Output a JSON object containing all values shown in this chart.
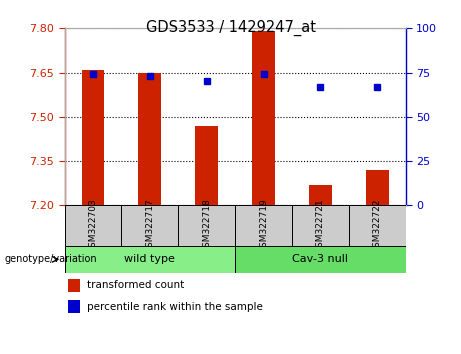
{
  "title": "GDS3533 / 1429247_at",
  "samples": [
    "GSM322703",
    "GSM322717",
    "GSM322718",
    "GSM322719",
    "GSM322721",
    "GSM322722"
  ],
  "bar_values": [
    7.66,
    7.65,
    7.47,
    7.79,
    7.27,
    7.32
  ],
  "dot_values": [
    74,
    73,
    70,
    74,
    67,
    67
  ],
  "ylim_left": [
    7.2,
    7.8
  ],
  "ylim_right": [
    0,
    100
  ],
  "yticks_left": [
    7.2,
    7.35,
    7.5,
    7.65,
    7.8
  ],
  "yticks_right": [
    0,
    25,
    50,
    75,
    100
  ],
  "bar_color": "#cc2200",
  "dot_color": "#0000cc",
  "groups": [
    {
      "label": "wild type",
      "start": 0,
      "end": 2,
      "color": "#88ee88"
    },
    {
      "label": "Cav-3 null",
      "start": 3,
      "end": 5,
      "color": "#66dd66"
    }
  ],
  "group_label": "genotype/variation",
  "legend1": "transformed count",
  "legend2": "percentile rank within the sample",
  "bar_color_legend": "#cc2200",
  "dot_color_legend": "#0000cc",
  "left_tick_color": "#cc2200",
  "right_tick_color": "#0000cc",
  "bar_width": 0.4,
  "sample_box_color": "#cccccc",
  "grid_linestyle": "dotted",
  "grid_color": "#000000",
  "grid_linewidth": 0.8,
  "fig_width": 4.61,
  "fig_height": 3.54,
  "dpi": 100
}
